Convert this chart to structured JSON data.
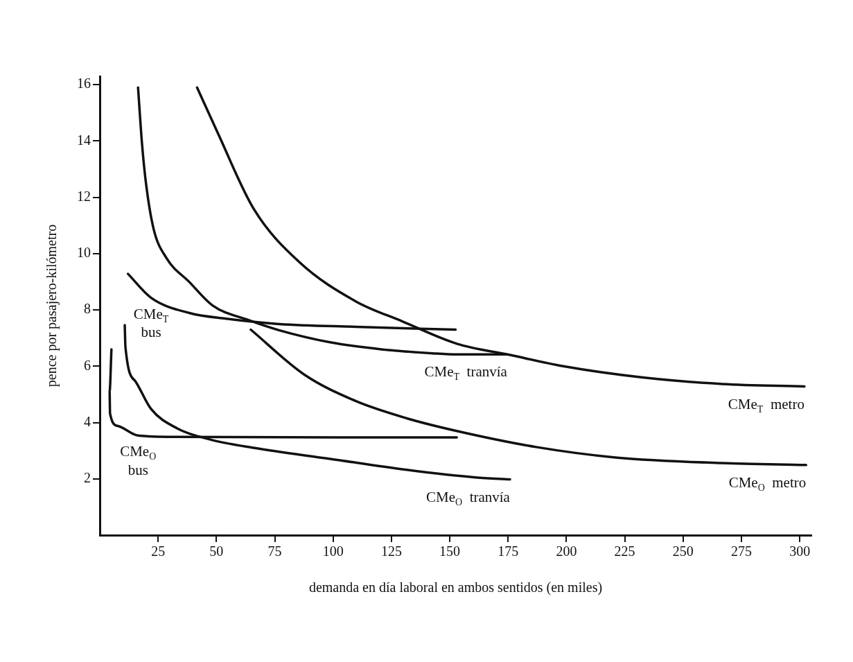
{
  "chart_data": {
    "type": "line",
    "xlabel": "demanda en día laboral en ambos sentidos (en miles)",
    "ylabel": "pence por pasajero-kilómetro",
    "xlim": [
      0,
      305
    ],
    "ylim": [
      0,
      16.3
    ],
    "xticks": [
      25,
      50,
      75,
      100,
      125,
      150,
      175,
      200,
      225,
      250,
      275,
      300
    ],
    "yticks": [
      2,
      4,
      6,
      8,
      10,
      12,
      14,
      16
    ],
    "grid": false,
    "legend": false,
    "marker": "none",
    "line_style": "solid",
    "series": [
      {
        "name": "CMe$_{T}$  metro",
        "color": "#111111",
        "x": [
          41.7,
          50.5,
          65.9,
          85.5,
          109.8,
          129.5,
          153,
          175.8,
          198.6,
          232.7,
          266.8,
          302
        ],
        "values": [
          15.9,
          14.3,
          11.6,
          9.7,
          8.3,
          7.6,
          6.8,
          6.4,
          6.0,
          5.6,
          5.37,
          5.28
        ]
      },
      {
        "name": "CMe$_{O}$  metro",
        "color": "#111111",
        "x": [
          64.7,
          87.7,
          109.8,
          131.6,
          153,
          187,
          221,
          266.8,
          302.7
        ],
        "values": [
          7.3,
          5.7,
          4.76,
          4.15,
          3.7,
          3.13,
          2.76,
          2.56,
          2.49
        ]
      },
      {
        "name": "CMe$_{T}$  tranvía",
        "color": "#111111",
        "x": [
          16.4,
          18.1,
          19.8,
          23,
          28.6,
          38.4,
          48.3,
          63.7,
          76.8,
          98.7,
          120.7,
          142.6,
          153,
          174.6
        ],
        "values": [
          15.9,
          13.9,
          12.5,
          10.9,
          9.84,
          8.99,
          8.16,
          7.64,
          7.28,
          6.85,
          6.6,
          6.46,
          6.42,
          6.42
        ]
      },
      {
        "name": "CMe$_{T}$\nbus",
        "color": "#111111",
        "x": [
          12.1,
          22,
          38.4,
          54.8,
          76.8,
          109.8,
          152.5
        ],
        "values": [
          9.28,
          8.43,
          7.89,
          7.68,
          7.5,
          7.4,
          7.3
        ]
      },
      {
        "name": "CMe$_{O}$\nbus",
        "color": "#111111",
        "x": [
          5,
          4.2,
          4.4,
          7.7,
          16.4,
          33,
          153
        ],
        "values": [
          6.6,
          5.1,
          4.32,
          3.88,
          3.54,
          3.49,
          3.47
        ]
      },
      {
        "name": "CMe$_{O}$  tranvía",
        "color": "#111111",
        "x": [
          10.7,
          11,
          15.4,
          21.9,
          33,
          47.1,
          65.9,
          98.7,
          131.6,
          161,
          175.8
        ],
        "values": [
          7.46,
          6.68,
          5.45,
          4.49,
          3.8,
          3.4,
          3.1,
          2.71,
          2.32,
          2.05,
          1.98
        ]
      }
    ]
  }
}
